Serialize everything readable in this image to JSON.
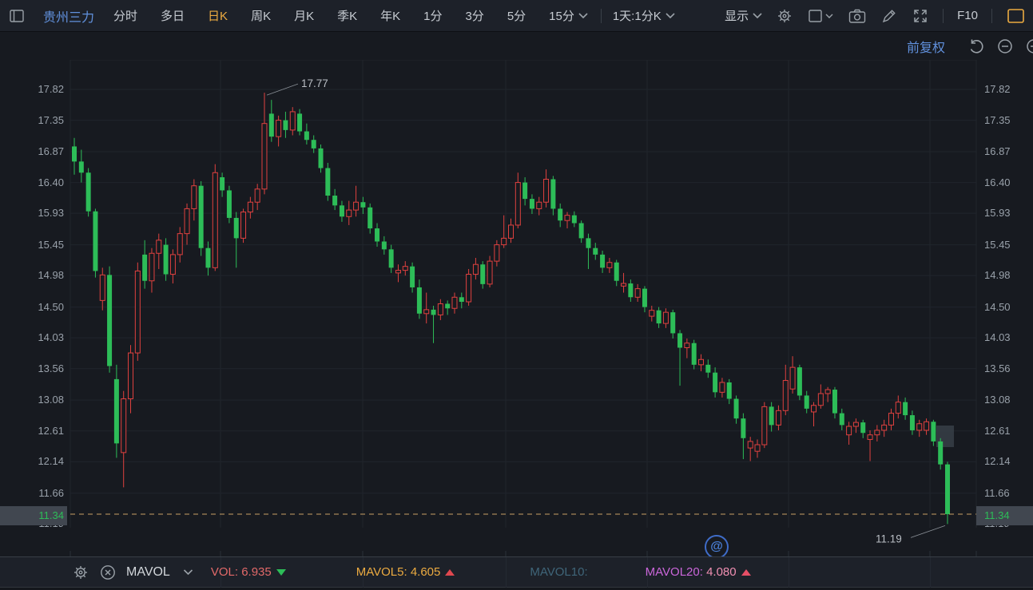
{
  "toolbar": {
    "stock_name": "贵州三力",
    "items": [
      "分时",
      "多日",
      "日K",
      "周K",
      "月K",
      "季K",
      "年K",
      "1分",
      "3分",
      "5分",
      "15分"
    ],
    "active_item": "日K",
    "interval_label": "1天:1分K",
    "display_label": "显示",
    "f10_label": "F10",
    "icons": [
      "window-icon",
      "gear-icon",
      "layout-square-icon",
      "camera-icon",
      "pencil-icon",
      "expand-icon",
      "orange-square-icon"
    ]
  },
  "adjust": {
    "label": "前复权",
    "icons": [
      "undo-icon",
      "zoom-out-icon",
      "zoom-in-icon"
    ]
  },
  "chart": {
    "type": "candlestick",
    "axis": {
      "prices": [
        "17.82",
        "17.35",
        "16.87",
        "16.40",
        "15.93",
        "15.45",
        "14.98",
        "14.50",
        "14.03",
        "13.56",
        "13.08",
        "12.61",
        "12.14",
        "11.66"
      ],
      "cut_label": "11.19",
      "top_price": 17.82,
      "price_step": 0.475
    },
    "current_price": "11.34",
    "annotations": {
      "high": "17.77",
      "low": "11.19"
    },
    "watermark": "@",
    "colors": {
      "up": "#e0413f",
      "down": "#2dbd58",
      "grid": "#20252c",
      "dashed": "#c8a064",
      "annotation": "#b9bec4",
      "highlight": "#3a414a"
    },
    "candles": [
      [
        16.95,
        17.08,
        16.52,
        16.72
      ],
      [
        16.72,
        16.9,
        16.4,
        16.55
      ],
      [
        16.55,
        16.62,
        15.88,
        15.96
      ],
      [
        15.96,
        16.0,
        14.95,
        15.05
      ],
      [
        14.6,
        15.1,
        14.45,
        14.99
      ],
      [
        14.99,
        15.12,
        13.5,
        13.6
      ],
      [
        13.4,
        13.62,
        12.2,
        12.42
      ],
      [
        12.28,
        13.22,
        11.75,
        13.1
      ],
      [
        13.1,
        13.92,
        12.88,
        13.8
      ],
      [
        13.8,
        15.18,
        13.68,
        15.05
      ],
      [
        15.3,
        15.52,
        14.78,
        14.9
      ],
      [
        14.9,
        15.4,
        14.72,
        15.32
      ],
      [
        15.32,
        15.62,
        15.08,
        15.52
      ],
      [
        15.45,
        15.55,
        14.9,
        15.0
      ],
      [
        15.0,
        15.38,
        14.86,
        15.3
      ],
      [
        15.3,
        15.72,
        15.18,
        15.62
      ],
      [
        15.62,
        16.08,
        15.45,
        16.0
      ],
      [
        16.0,
        16.45,
        15.82,
        16.35
      ],
      [
        16.35,
        16.42,
        15.28,
        15.4
      ],
      [
        15.4,
        15.5,
        14.98,
        15.1
      ],
      [
        15.1,
        16.68,
        15.05,
        16.55
      ],
      [
        16.48,
        16.55,
        16.18,
        16.28
      ],
      [
        16.28,
        16.35,
        15.78,
        15.86
      ],
      [
        15.86,
        15.95,
        15.1,
        15.55
      ],
      [
        15.55,
        16.0,
        15.48,
        15.95
      ],
      [
        15.95,
        16.18,
        15.85,
        16.1
      ],
      [
        16.1,
        16.38,
        15.98,
        16.3
      ],
      [
        16.3,
        17.77,
        16.22,
        17.3
      ],
      [
        17.45,
        17.66,
        17.02,
        17.1
      ],
      [
        17.1,
        17.42,
        16.95,
        17.35
      ],
      [
        17.35,
        17.48,
        17.08,
        17.2
      ],
      [
        17.2,
        17.55,
        17.12,
        17.48
      ],
      [
        17.45,
        17.52,
        17.12,
        17.18
      ],
      [
        17.18,
        17.3,
        16.98,
        17.05
      ],
      [
        17.05,
        17.12,
        16.85,
        16.92
      ],
      [
        16.92,
        16.98,
        16.55,
        16.62
      ],
      [
        16.62,
        16.7,
        16.12,
        16.2
      ],
      [
        16.2,
        16.3,
        15.98,
        16.05
      ],
      [
        16.05,
        16.12,
        15.8,
        15.88
      ],
      [
        15.88,
        16.12,
        15.75,
        15.98
      ],
      [
        15.98,
        16.35,
        15.88,
        16.1
      ],
      [
        16.1,
        16.18,
        15.92,
        16.02
      ],
      [
        16.02,
        16.08,
        15.62,
        15.7
      ],
      [
        15.7,
        15.78,
        15.42,
        15.5
      ],
      [
        15.5,
        15.58,
        15.3,
        15.38
      ],
      [
        15.38,
        15.45,
        15.02,
        15.1
      ],
      [
        15.02,
        15.15,
        14.88,
        15.06
      ],
      [
        15.06,
        15.2,
        14.98,
        15.12
      ],
      [
        15.12,
        15.18,
        14.72,
        14.8
      ],
      [
        14.8,
        14.92,
        14.32,
        14.4
      ],
      [
        14.4,
        14.72,
        14.25,
        14.46
      ],
      [
        14.46,
        14.52,
        13.95,
        14.38
      ],
      [
        14.38,
        14.62,
        14.3,
        14.55
      ],
      [
        14.55,
        14.6,
        14.38,
        14.48
      ],
      [
        14.48,
        14.72,
        14.4,
        14.65
      ],
      [
        14.65,
        14.72,
        14.48,
        14.58
      ],
      [
        14.58,
        15.08,
        14.52,
        15.0
      ],
      [
        15.0,
        15.25,
        14.92,
        15.15
      ],
      [
        15.15,
        15.2,
        14.78,
        14.85
      ],
      [
        14.85,
        15.28,
        14.8,
        15.2
      ],
      [
        15.2,
        15.52,
        15.12,
        15.45
      ],
      [
        15.45,
        15.9,
        15.4,
        15.55
      ],
      [
        15.55,
        15.85,
        15.48,
        15.75
      ],
      [
        15.75,
        16.55,
        15.7,
        16.4
      ],
      [
        16.4,
        16.48,
        16.05,
        16.15
      ],
      [
        16.15,
        16.22,
        15.92,
        16.0
      ],
      [
        16.0,
        16.18,
        15.9,
        16.1
      ],
      [
        16.1,
        16.6,
        16.02,
        16.45
      ],
      [
        16.45,
        16.5,
        15.9,
        16.0
      ],
      [
        16.0,
        16.08,
        15.72,
        15.82
      ],
      [
        15.82,
        15.95,
        15.7,
        15.9
      ],
      [
        15.9,
        15.96,
        15.72,
        15.78
      ],
      [
        15.78,
        15.82,
        15.48,
        15.55
      ],
      [
        15.55,
        15.62,
        15.08,
        15.4
      ],
      [
        15.4,
        15.48,
        15.22,
        15.3
      ],
      [
        15.3,
        15.36,
        15.02,
        15.1
      ],
      [
        15.1,
        15.25,
        15.02,
        15.18
      ],
      [
        15.18,
        15.22,
        14.82,
        14.9
      ],
      [
        14.82,
        15.02,
        14.72,
        14.86
      ],
      [
        14.86,
        14.92,
        14.58,
        14.65
      ],
      [
        14.65,
        14.85,
        14.58,
        14.78
      ],
      [
        14.78,
        14.82,
        14.42,
        14.5
      ],
      [
        14.36,
        14.52,
        14.28,
        14.45
      ],
      [
        14.45,
        14.5,
        14.18,
        14.25
      ],
      [
        14.25,
        14.48,
        14.18,
        14.42
      ],
      [
        14.42,
        14.46,
        14.02,
        14.1
      ],
      [
        14.1,
        14.15,
        13.3,
        13.88
      ],
      [
        13.88,
        14.02,
        13.72,
        13.95
      ],
      [
        13.95,
        14.0,
        13.55,
        13.62
      ],
      [
        13.62,
        13.78,
        13.52,
        13.7
      ],
      [
        13.62,
        13.7,
        13.42,
        13.5
      ],
      [
        13.5,
        13.58,
        13.12,
        13.2
      ],
      [
        13.2,
        13.42,
        13.12,
        13.35
      ],
      [
        13.35,
        13.4,
        13.02,
        13.1
      ],
      [
        13.1,
        13.15,
        12.72,
        12.8
      ],
      [
        12.8,
        12.88,
        12.18,
        12.5
      ],
      [
        12.35,
        12.52,
        12.15,
        12.45
      ],
      [
        12.3,
        12.48,
        12.2,
        12.4
      ],
      [
        12.4,
        13.05,
        12.35,
        12.98
      ],
      [
        12.98,
        13.05,
        12.6,
        12.7
      ],
      [
        12.7,
        13.0,
        12.62,
        12.92
      ],
      [
        12.92,
        13.62,
        12.85,
        13.38
      ],
      [
        13.25,
        13.75,
        13.18,
        13.58
      ],
      [
        13.58,
        13.62,
        13.08,
        13.15
      ],
      [
        13.15,
        13.22,
        12.88,
        12.95
      ],
      [
        12.9,
        13.05,
        12.68,
        13.0
      ],
      [
        13.0,
        13.32,
        12.95,
        13.18
      ],
      [
        13.18,
        13.28,
        13.05,
        13.24
      ],
      [
        13.24,
        13.28,
        12.8,
        12.88
      ],
      [
        12.88,
        12.95,
        12.62,
        12.7
      ],
      [
        12.55,
        12.75,
        12.4,
        12.68
      ],
      [
        12.68,
        12.8,
        12.58,
        12.74
      ],
      [
        12.74,
        12.78,
        12.5,
        12.58
      ],
      [
        12.48,
        12.62,
        12.15,
        12.55
      ],
      [
        12.55,
        12.7,
        12.45,
        12.62
      ],
      [
        12.62,
        12.78,
        12.52,
        12.7
      ],
      [
        12.7,
        12.95,
        12.62,
        12.88
      ],
      [
        12.88,
        13.15,
        12.8,
        13.05
      ],
      [
        13.05,
        13.12,
        12.78,
        12.85
      ],
      [
        12.85,
        12.92,
        12.55,
        12.62
      ],
      [
        12.62,
        12.78,
        12.52,
        12.72
      ],
      [
        12.62,
        12.8,
        12.55,
        12.75
      ],
      [
        12.75,
        12.78,
        12.38,
        12.45
      ],
      [
        12.45,
        12.5,
        12.02,
        12.1
      ],
      [
        12.1,
        12.14,
        11.19,
        11.34
      ]
    ]
  },
  "indicator_bar": {
    "name": "MAVOL",
    "vol_label": "VOL:",
    "vol_value": "6.935",
    "vol_color": "#e26969",
    "vol_tri_color": "#2dbd58",
    "mavol5_label": "MAVOL5:",
    "mavol5_value": "4.605",
    "mavol5_color": "#ecab41",
    "mavol5_tri_color": "#e0484f",
    "mavol10_label": "MAVOL10:",
    "mavol10_color": "#3f6579",
    "mavol20_label": "MAVOL20:",
    "mavol20_value": "4.080",
    "mavol20_label_color": "#cb66da",
    "mavol20_value_color": "#f08fb2",
    "mavol20_tri_color": "#e64f66"
  }
}
